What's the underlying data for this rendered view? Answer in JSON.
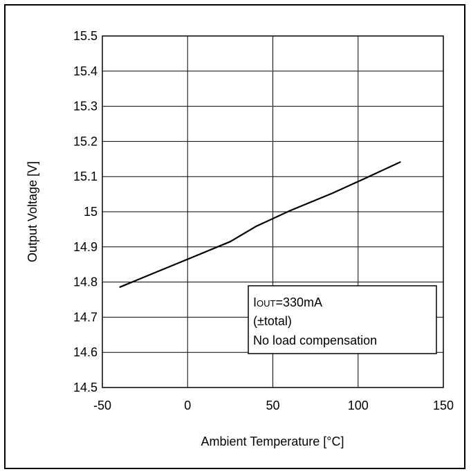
{
  "chart_data": {
    "type": "line",
    "xlabel": "Ambient Temperature [°C]",
    "ylabel": "Output Voltage [V]",
    "xlim": [
      -50,
      150
    ],
    "ylim": [
      14.5,
      15.5
    ],
    "xticks": [
      -50,
      0,
      50,
      100,
      150
    ],
    "yticks": [
      14.5,
      14.6,
      14.7,
      14.8,
      14.9,
      15.0,
      15.1,
      15.2,
      15.3,
      15.4,
      15.5
    ],
    "xtick_labels": [
      "-50",
      "0",
      "50",
      "100",
      "150"
    ],
    "ytick_labels": [
      "14.5",
      "14.6",
      "14.7",
      "14.8",
      "14.9",
      "15",
      "15.1",
      "15.2",
      "15.3",
      "15.4",
      "15.5"
    ],
    "grid": true,
    "series": [
      {
        "x": [
          -40,
          -20,
          0,
          25,
          40,
          60,
          85,
          105,
          125
        ],
        "y": [
          14.785,
          14.825,
          14.865,
          14.915,
          14.958,
          15.003,
          15.053,
          15.097,
          15.142
        ]
      }
    ],
    "annotation": {
      "iout_prefix": "I",
      "iout_subscript": "OUT",
      "iout_value": "=330mA",
      "line2": "(±total)",
      "line3": "No load compensation"
    }
  }
}
